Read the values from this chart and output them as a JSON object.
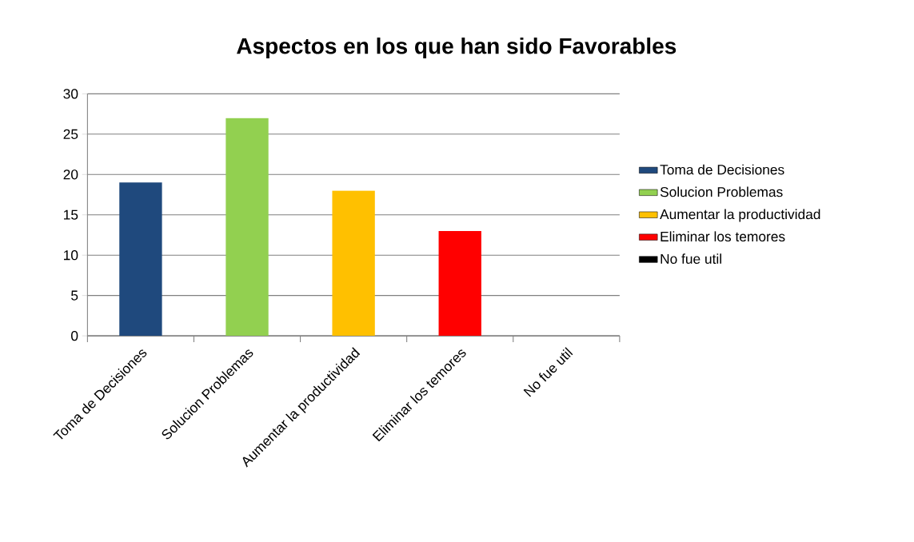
{
  "chart_data": {
    "type": "bar",
    "title": "Aspectos en los que han sido Favorables",
    "categories": [
      "Toma de Decisiones",
      "Solucion Problemas",
      "Aumentar la productividad",
      "Eliminar los temores",
      "No fue util"
    ],
    "series": [
      {
        "name": "Toma de Decisiones",
        "color": "#1f497d",
        "values": [
          19,
          null,
          null,
          null,
          null
        ]
      },
      {
        "name": "Solucion Problemas",
        "color": "#92d050",
        "values": [
          null,
          27,
          null,
          null,
          null
        ]
      },
      {
        "name": "Aumentar la productividad",
        "color": "#ffc000",
        "values": [
          null,
          null,
          18,
          null,
          null
        ]
      },
      {
        "name": "Eliminar los temores",
        "color": "#ff0000",
        "values": [
          null,
          null,
          null,
          13,
          null
        ]
      },
      {
        "name": "No fue util",
        "color": "#000000",
        "values": [
          null,
          null,
          null,
          null,
          0
        ]
      }
    ],
    "ylim": [
      0,
      30
    ],
    "yticks": [
      0,
      5,
      10,
      15,
      20,
      25,
      30
    ],
    "grid": "y",
    "legend": "right"
  }
}
